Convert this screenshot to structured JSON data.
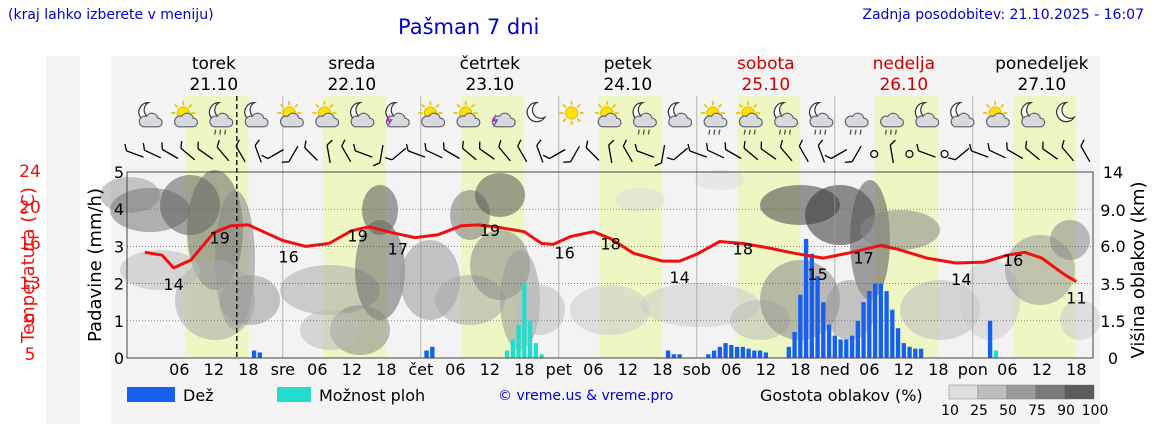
{
  "header": {
    "region_note": "(kraj lahko izberete v meniju)",
    "title": "Pašman 7 dni",
    "updated": "Zadnja posodobitev: 21.10.2025 - 16:07"
  },
  "credit": "© vreme.us & vreme.pro",
  "colors": {
    "temperature": "#ee1111",
    "rain": "#1560f0",
    "shower_possibility": "#22ddcc",
    "daytime_band": "#eef7c4",
    "night_band": "#f3f3f3",
    "weekend": "#cc0000",
    "link_blue": "#0000cc"
  },
  "chart_data": {
    "type": "meteogram",
    "days": [
      {
        "name": "torek",
        "date": "21.10",
        "weekend": false
      },
      {
        "name": "sreda",
        "date": "22.10",
        "weekend": false
      },
      {
        "name": "četrtek",
        "date": "23.10",
        "weekend": false
      },
      {
        "name": "petek",
        "date": "24.10",
        "weekend": false
      },
      {
        "name": "sobota",
        "date": "25.10",
        "weekend": true
      },
      {
        "name": "nedelja",
        "date": "26.10",
        "weekend": true
      },
      {
        "name": "ponedeljek",
        "date": "27.10",
        "weekend": false
      }
    ],
    "x_tick_labels": [
      "06",
      "12",
      "18",
      "sre",
      "06",
      "12",
      "18",
      "čet",
      "06",
      "12",
      "18",
      "pet",
      "06",
      "12",
      "18",
      "sob",
      "06",
      "12",
      "18",
      "ned",
      "06",
      "12",
      "18",
      "pon",
      "06",
      "12",
      "18"
    ],
    "left_axis_temperature": {
      "label": "Temperatura (°C)",
      "ticks": [
        5,
        9,
        13,
        16,
        20,
        24
      ]
    },
    "left_axis_precip": {
      "label": "Padavine (mm/h)",
      "ticks": [
        0,
        1,
        2,
        3,
        4,
        5
      ],
      "ylim": [
        0,
        5
      ]
    },
    "right_axis_cloud": {
      "label": "Višina oblakov (km)",
      "ticks": [
        "0",
        "1.5",
        "3.5",
        "6.0",
        "9.0",
        "14"
      ]
    },
    "temperature_series": {
      "name": "Temperatura",
      "points": [
        [
          0,
          15.8
        ],
        [
          3,
          15.5
        ],
        [
          5,
          14.2
        ],
        [
          8,
          15.0
        ],
        [
          12,
          17.8
        ],
        [
          15,
          18.5
        ],
        [
          18,
          18.6
        ],
        [
          21,
          17.8
        ],
        [
          24,
          17.0
        ],
        [
          28,
          16.4
        ],
        [
          32,
          16.7
        ],
        [
          36,
          18.0
        ],
        [
          39,
          18.4
        ],
        [
          43,
          17.8
        ],
        [
          47,
          17.3
        ],
        [
          51,
          17.6
        ],
        [
          55,
          18.5
        ],
        [
          58,
          18.6
        ],
        [
          62,
          18.3
        ],
        [
          66,
          17.9
        ],
        [
          69,
          16.7
        ],
        [
          71,
          16.6
        ],
        [
          74,
          17.4
        ],
        [
          78,
          17.9
        ],
        [
          81,
          17.2
        ],
        [
          85,
          15.7
        ],
        [
          90,
          14.9
        ],
        [
          93,
          14.9
        ],
        [
          96,
          15.6
        ],
        [
          100,
          16.9
        ],
        [
          104,
          16.7
        ],
        [
          108,
          16.3
        ],
        [
          113,
          15.7
        ],
        [
          118,
          15.2
        ],
        [
          123,
          15.8
        ],
        [
          128,
          16.5
        ],
        [
          131,
          16.1
        ],
        [
          136,
          15.2
        ],
        [
          141,
          14.7
        ],
        [
          146,
          14.8
        ],
        [
          150,
          15.5
        ],
        [
          153,
          15.8
        ],
        [
          156,
          15.2
        ],
        [
          160,
          13.5
        ],
        [
          162,
          12.8
        ]
      ]
    },
    "temperature_labels": [
      {
        "t": 5,
        "v": "14"
      },
      {
        "t": 13,
        "v": "19"
      },
      {
        "t": 25,
        "v": "16"
      },
      {
        "t": 37,
        "v": "19"
      },
      {
        "t": 44,
        "v": "17"
      },
      {
        "t": 60,
        "v": "19"
      },
      {
        "t": 73,
        "v": "16"
      },
      {
        "t": 81,
        "v": "18"
      },
      {
        "t": 93,
        "v": "14"
      },
      {
        "t": 104,
        "v": "18"
      },
      {
        "t": 117,
        "v": "15"
      },
      {
        "t": 125,
        "v": "17"
      },
      {
        "t": 142,
        "v": "14"
      },
      {
        "t": 151,
        "v": "16"
      },
      {
        "t": 162,
        "v": "11"
      }
    ],
    "rain_series": {
      "name": "Dež",
      "points": [
        [
          19,
          0.2
        ],
        [
          20,
          0.15
        ],
        [
          49,
          0.2
        ],
        [
          50,
          0.3
        ],
        [
          91,
          0.2
        ],
        [
          92,
          0.1
        ],
        [
          93,
          0.1
        ],
        [
          98,
          0.1
        ],
        [
          99,
          0.2
        ],
        [
          100,
          0.3
        ],
        [
          101,
          0.4
        ],
        [
          102,
          0.35
        ],
        [
          103,
          0.3
        ],
        [
          104,
          0.3
        ],
        [
          105,
          0.25
        ],
        [
          106,
          0.2
        ],
        [
          107,
          0.2
        ],
        [
          108,
          0.15
        ],
        [
          112,
          0.3
        ],
        [
          113,
          0.7
        ],
        [
          114,
          1.7
        ],
        [
          115,
          3.2
        ],
        [
          116,
          2.8
        ],
        [
          117,
          2.2
        ],
        [
          118,
          1.5
        ],
        [
          119,
          0.9
        ],
        [
          120,
          0.6
        ],
        [
          121,
          0.5
        ],
        [
          122,
          0.5
        ],
        [
          123,
          0.6
        ],
        [
          124,
          1.0
        ],
        [
          125,
          1.5
        ],
        [
          126,
          1.8
        ],
        [
          127,
          2.0
        ],
        [
          128,
          2.0
        ],
        [
          129,
          1.8
        ],
        [
          130,
          1.3
        ],
        [
          131,
          0.8
        ],
        [
          132,
          0.4
        ],
        [
          133,
          0.3
        ],
        [
          134,
          0.25
        ],
        [
          135,
          0.25
        ],
        [
          147,
          1.0
        ]
      ]
    },
    "shower_series": {
      "name": "Možnost ploh",
      "points": [
        [
          49,
          0.2
        ],
        [
          50,
          0.3
        ],
        [
          63,
          0.2
        ],
        [
          64,
          0.5
        ],
        [
          65,
          0.9
        ],
        [
          66,
          2.0
        ],
        [
          67,
          1.0
        ],
        [
          68,
          0.4
        ],
        [
          69,
          0.1
        ],
        [
          116,
          0.3
        ],
        [
          117,
          0.5
        ],
        [
          118,
          0.4
        ],
        [
          122,
          0.2
        ],
        [
          123,
          0.35
        ],
        [
          124,
          0.3
        ],
        [
          147,
          0.4
        ],
        [
          148,
          0.2
        ]
      ]
    },
    "legend": {
      "rain": "Dež",
      "shower": "Možnost ploh",
      "cloud_density_title": "Gostota oblakov (%)",
      "cloud_density_steps": [
        "10",
        "25",
        "50",
        "75",
        "90",
        "100"
      ]
    },
    "now_marker_hour": 16,
    "grid": true
  }
}
